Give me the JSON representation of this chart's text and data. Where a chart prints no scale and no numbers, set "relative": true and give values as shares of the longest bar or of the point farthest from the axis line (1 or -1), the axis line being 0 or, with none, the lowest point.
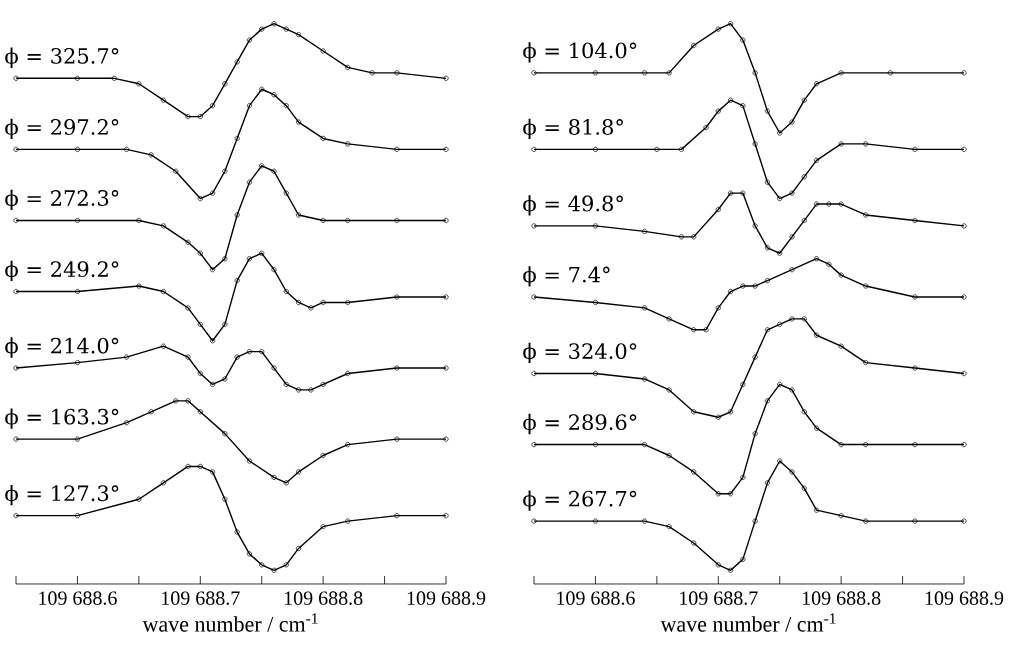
{
  "chart_data": [
    {
      "type": "line",
      "relative": true,
      "marker": "circle",
      "xlabel": "wave number / cm$^{-1}$",
      "xlim": [
        109688.55,
        109688.9
      ],
      "xticks": [
        {
          "value": 109688.55,
          "label": null
        },
        {
          "value": 109688.6,
          "label": "109 688.6"
        },
        {
          "value": 109688.65,
          "label": null
        },
        {
          "value": 109688.7,
          "label": "109 688.7"
        },
        {
          "value": 109688.75,
          "label": null
        },
        {
          "value": 109688.8,
          "label": "109 688.8"
        },
        {
          "value": 109688.85,
          "label": null
        },
        {
          "value": 109688.9,
          "label": "109 688.9"
        }
      ],
      "series": [
        {
          "name": "ϕ = 325.7°",
          "color": "#000000",
          "x": [
            109688.55,
            109688.6,
            109688.63,
            109688.65,
            109688.67,
            109688.69,
            109688.7,
            109688.71,
            109688.72,
            109688.73,
            109688.74,
            109688.75,
            109688.76,
            109688.77,
            109688.78,
            109688.8,
            109688.82,
            109688.84,
            109688.86,
            109688.9
          ],
          "values": [
            0.9,
            0.9,
            0.9,
            0.89,
            0.86,
            0.83,
            0.83,
            0.85,
            0.89,
            0.93,
            0.97,
            0.99,
            1.0,
            0.99,
            0.98,
            0.95,
            0.92,
            0.91,
            0.91,
            0.9
          ]
        },
        {
          "name": "ϕ = 297.2°",
          "color": "#000000",
          "x": [
            109688.55,
            109688.6,
            109688.64,
            109688.66,
            109688.68,
            109688.7,
            109688.71,
            109688.72,
            109688.73,
            109688.74,
            109688.75,
            109688.76,
            109688.77,
            109688.78,
            109688.8,
            109688.82,
            109688.86,
            109688.9
          ],
          "values": [
            0.77,
            0.77,
            0.77,
            0.76,
            0.73,
            0.68,
            0.69,
            0.73,
            0.79,
            0.85,
            0.88,
            0.87,
            0.85,
            0.82,
            0.79,
            0.78,
            0.77,
            0.77
          ]
        },
        {
          "name": "ϕ = 272.3°",
          "color": "#000000",
          "x": [
            109688.55,
            109688.6,
            109688.65,
            109688.67,
            109688.69,
            109688.7,
            109688.71,
            109688.72,
            109688.73,
            109688.74,
            109688.75,
            109688.76,
            109688.77,
            109688.78,
            109688.8,
            109688.82,
            109688.86,
            109688.9
          ],
          "values": [
            0.64,
            0.64,
            0.64,
            0.63,
            0.6,
            0.58,
            0.55,
            0.57,
            0.65,
            0.71,
            0.74,
            0.73,
            0.69,
            0.65,
            0.64,
            0.64,
            0.64,
            0.64
          ]
        },
        {
          "name": "ϕ = 249.2°",
          "color": "#000000",
          "x": [
            109688.55,
            109688.6,
            109688.65,
            109688.67,
            109688.69,
            109688.7,
            109688.71,
            109688.72,
            109688.73,
            109688.74,
            109688.75,
            109688.76,
            109688.77,
            109688.78,
            109688.79,
            109688.8,
            109688.82,
            109688.86,
            109688.9
          ],
          "values": [
            0.51,
            0.51,
            0.52,
            0.51,
            0.48,
            0.45,
            0.42,
            0.45,
            0.53,
            0.57,
            0.58,
            0.55,
            0.51,
            0.49,
            0.48,
            0.49,
            0.49,
            0.5,
            0.5
          ]
        },
        {
          "name": "ϕ = 214.0°",
          "color": "#000000",
          "x": [
            109688.55,
            109688.6,
            109688.64,
            109688.67,
            109688.69,
            109688.7,
            109688.71,
            109688.72,
            109688.73,
            109688.74,
            109688.75,
            109688.76,
            109688.77,
            109688.78,
            109688.79,
            109688.8,
            109688.82,
            109688.86,
            109688.9
          ],
          "values": [
            0.37,
            0.38,
            0.39,
            0.41,
            0.39,
            0.36,
            0.34,
            0.35,
            0.39,
            0.4,
            0.4,
            0.37,
            0.34,
            0.33,
            0.33,
            0.34,
            0.36,
            0.37,
            0.37
          ]
        },
        {
          "name": "ϕ = 163.3°",
          "color": "#000000",
          "x": [
            109688.55,
            109688.6,
            109688.64,
            109688.66,
            109688.68,
            109688.69,
            109688.7,
            109688.72,
            109688.74,
            109688.76,
            109688.77,
            109688.78,
            109688.8,
            109688.82,
            109688.86,
            109688.9
          ],
          "values": [
            0.24,
            0.24,
            0.27,
            0.29,
            0.31,
            0.31,
            0.29,
            0.25,
            0.2,
            0.17,
            0.16,
            0.18,
            0.21,
            0.23,
            0.24,
            0.24
          ]
        },
        {
          "name": "ϕ = 127.3°",
          "color": "#000000",
          "x": [
            109688.55,
            109688.6,
            109688.65,
            109688.67,
            109688.69,
            109688.7,
            109688.71,
            109688.72,
            109688.73,
            109688.74,
            109688.75,
            109688.76,
            109688.77,
            109688.78,
            109688.8,
            109688.82,
            109688.86,
            109688.9
          ],
          "values": [
            0.1,
            0.1,
            0.13,
            0.16,
            0.19,
            0.19,
            0.18,
            0.13,
            0.07,
            0.03,
            0.01,
            0.0,
            0.01,
            0.04,
            0.08,
            0.09,
            0.1,
            0.1
          ]
        }
      ]
    },
    {
      "type": "line",
      "relative": true,
      "marker": "circle",
      "xlabel": "wave number / cm$^{-1}$",
      "xlim": [
        109688.55,
        109688.9
      ],
      "xticks": [
        {
          "value": 109688.55,
          "label": null
        },
        {
          "value": 109688.6,
          "label": "109 688.6"
        },
        {
          "value": 109688.65,
          "label": null
        },
        {
          "value": 109688.7,
          "label": "109 688.7"
        },
        {
          "value": 109688.75,
          "label": null
        },
        {
          "value": 109688.8,
          "label": "109 688.8"
        },
        {
          "value": 109688.85,
          "label": null
        },
        {
          "value": 109688.9,
          "label": "109 688.9"
        }
      ],
      "series": [
        {
          "name": "ϕ = 104.0°",
          "color": "#000000",
          "x": [
            109688.55,
            109688.6,
            109688.64,
            109688.66,
            109688.68,
            109688.7,
            109688.71,
            109688.72,
            109688.73,
            109688.74,
            109688.75,
            109688.76,
            109688.77,
            109688.78,
            109688.8,
            109688.84,
            109688.9
          ],
          "values": [
            0.91,
            0.91,
            0.91,
            0.91,
            0.96,
            0.99,
            1.0,
            0.97,
            0.91,
            0.84,
            0.8,
            0.82,
            0.86,
            0.89,
            0.91,
            0.91,
            0.91
          ]
        },
        {
          "name": "ϕ = 81.8°",
          "color": "#000000",
          "x": [
            109688.55,
            109688.6,
            109688.65,
            109688.67,
            109688.69,
            109688.7,
            109688.71,
            109688.72,
            109688.73,
            109688.74,
            109688.75,
            109688.76,
            109688.77,
            109688.78,
            109688.8,
            109688.82,
            109688.86,
            109688.9
          ],
          "values": [
            0.77,
            0.77,
            0.77,
            0.77,
            0.81,
            0.84,
            0.86,
            0.85,
            0.78,
            0.71,
            0.68,
            0.69,
            0.72,
            0.75,
            0.78,
            0.78,
            0.77,
            0.77
          ]
        },
        {
          "name": "ϕ = 49.8°",
          "color": "#000000",
          "x": [
            109688.55,
            109688.6,
            109688.64,
            109688.67,
            109688.68,
            109688.7,
            109688.71,
            109688.72,
            109688.73,
            109688.74,
            109688.75,
            109688.76,
            109688.77,
            109688.78,
            109688.79,
            109688.8,
            109688.82,
            109688.86,
            109688.9
          ],
          "values": [
            0.63,
            0.63,
            0.62,
            0.61,
            0.61,
            0.66,
            0.69,
            0.69,
            0.63,
            0.59,
            0.58,
            0.61,
            0.64,
            0.67,
            0.67,
            0.67,
            0.65,
            0.64,
            0.63
          ]
        },
        {
          "name": "ϕ = 7.4°",
          "color": "#000000",
          "x": [
            109688.55,
            109688.6,
            109688.64,
            109688.66,
            109688.68,
            109688.69,
            109688.7,
            109688.71,
            109688.72,
            109688.73,
            109688.74,
            109688.76,
            109688.78,
            109688.79,
            109688.8,
            109688.82,
            109688.86,
            109688.9
          ],
          "values": [
            0.5,
            0.49,
            0.48,
            0.46,
            0.44,
            0.44,
            0.48,
            0.51,
            0.52,
            0.52,
            0.53,
            0.55,
            0.57,
            0.56,
            0.54,
            0.52,
            0.5,
            0.5
          ]
        },
        {
          "name": "ϕ = 324.0°",
          "color": "#000000",
          "x": [
            109688.55,
            109688.6,
            109688.64,
            109688.66,
            109688.68,
            109688.7,
            109688.71,
            109688.72,
            109688.73,
            109688.74,
            109688.75,
            109688.76,
            109688.77,
            109688.78,
            109688.8,
            109688.82,
            109688.86,
            109688.9
          ],
          "values": [
            0.36,
            0.36,
            0.35,
            0.33,
            0.29,
            0.28,
            0.29,
            0.34,
            0.39,
            0.44,
            0.45,
            0.46,
            0.46,
            0.43,
            0.41,
            0.38,
            0.37,
            0.36
          ]
        },
        {
          "name": "ϕ = 289.6°",
          "color": "#000000",
          "x": [
            109688.55,
            109688.6,
            109688.64,
            109688.66,
            109688.68,
            109688.7,
            109688.71,
            109688.72,
            109688.73,
            109688.74,
            109688.75,
            109688.76,
            109688.77,
            109688.78,
            109688.8,
            109688.82,
            109688.86,
            109688.9
          ],
          "values": [
            0.23,
            0.23,
            0.23,
            0.21,
            0.18,
            0.14,
            0.14,
            0.17,
            0.25,
            0.31,
            0.34,
            0.33,
            0.29,
            0.26,
            0.23,
            0.23,
            0.23,
            0.23
          ]
        },
        {
          "name": "ϕ = 267.7°",
          "color": "#000000",
          "x": [
            109688.55,
            109688.6,
            109688.64,
            109688.66,
            109688.68,
            109688.7,
            109688.71,
            109688.72,
            109688.73,
            109688.74,
            109688.75,
            109688.76,
            109688.77,
            109688.78,
            109688.8,
            109688.82,
            109688.86,
            109688.9
          ],
          "values": [
            0.09,
            0.09,
            0.09,
            0.08,
            0.05,
            0.01,
            0.0,
            0.02,
            0.09,
            0.16,
            0.2,
            0.18,
            0.15,
            0.11,
            0.1,
            0.09,
            0.09,
            0.09
          ]
        }
      ]
    }
  ]
}
